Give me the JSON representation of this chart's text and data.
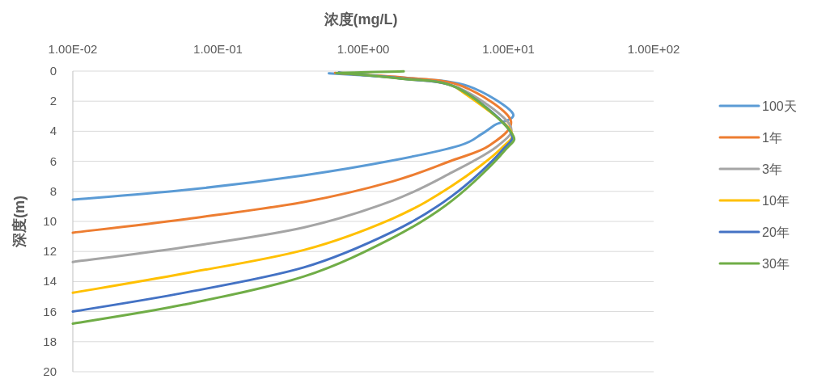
{
  "chart_data": {
    "type": "line",
    "xlabel": "浓度(mg/L)",
    "ylabel": "深度(m)",
    "log": "x",
    "xlim": [
      0.01,
      100
    ],
    "ylim": [
      20,
      0
    ],
    "xticks": [
      {
        "value": 0.01,
        "label": "1.00E-02"
      },
      {
        "value": 0.1,
        "label": "1.00E-01"
      },
      {
        "value": 1,
        "label": "1.00E+00"
      },
      {
        "value": 10,
        "label": "1.00E+01"
      },
      {
        "value": 100,
        "label": "1.00E+02"
      }
    ],
    "yticks": [
      0,
      2,
      4,
      6,
      8,
      10,
      12,
      14,
      16,
      18,
      20
    ],
    "grid": "y",
    "legend": "right",
    "series": [
      {
        "name": "100天",
        "color": "#5b9bd5",
        "x": [
          0.58,
          0.96,
          2.2,
          5.3,
          10.7,
          8.0,
          6.5,
          4.6,
          1.6,
          0.39,
          0.058,
          0.01
        ],
        "values": [
          0.15,
          0.27,
          0.48,
          1.0,
          2.8,
          3.6,
          4.2,
          4.95,
          5.94,
          6.93,
          7.92,
          8.55
        ]
      },
      {
        "name": "1年",
        "color": "#ed7d31",
        "x": [
          0.64,
          0.88,
          2.0,
          4.8,
          10.3,
          7.4,
          4.1,
          1.6,
          0.39,
          0.058,
          0.01
        ],
        "values": [
          0.12,
          0.22,
          0.45,
          1.0,
          3.2,
          4.95,
          5.94,
          7.33,
          8.71,
          9.86,
          10.75
        ]
      },
      {
        "name": "3年",
        "color": "#a5a5a5",
        "x": [
          0.68,
          0.88,
          1.9,
          4.5,
          10.1,
          8.5,
          4.1,
          1.6,
          0.39,
          0.058,
          0.01
        ],
        "values": [
          0.1,
          0.2,
          0.5,
          1.1,
          3.5,
          4.95,
          6.73,
          8.61,
          10.4,
          11.72,
          12.7
        ]
      },
      {
        "name": "10年",
        "color": "#ffc000",
        "x": [
          null,
          null,
          null,
          4.4,
          10.1,
          8.9,
          4.1,
          1.6,
          0.39,
          0.058,
          0.01
        ],
        "values": [
          null,
          null,
          null,
          1.1,
          3.8,
          5.15,
          7.62,
          9.8,
          11.9,
          13.47,
          14.75
        ]
      },
      {
        "name": "20年",
        "color": "#4472c4",
        "x": [
          0.68,
          0.86,
          1.85,
          4.4,
          10.1,
          8.9,
          4.1,
          1.6,
          0.39,
          0.058,
          0.01
        ],
        "values": [
          0.1,
          0.2,
          0.5,
          1.1,
          3.9,
          5.35,
          8.3,
          10.68,
          13.06,
          14.75,
          16.0
        ]
      },
      {
        "name": "30年",
        "color": "#70ad47",
        "x": [
          1.9,
          0.68,
          0.87,
          1.8,
          4.4,
          10.3,
          9.3,
          4.1,
          1.6,
          0.39,
          0.058,
          0.01
        ],
        "values": [
          0.02,
          0.12,
          0.2,
          0.5,
          1.1,
          4.0,
          5.35,
          8.61,
          11.08,
          13.66,
          15.54,
          16.8
        ]
      }
    ]
  }
}
